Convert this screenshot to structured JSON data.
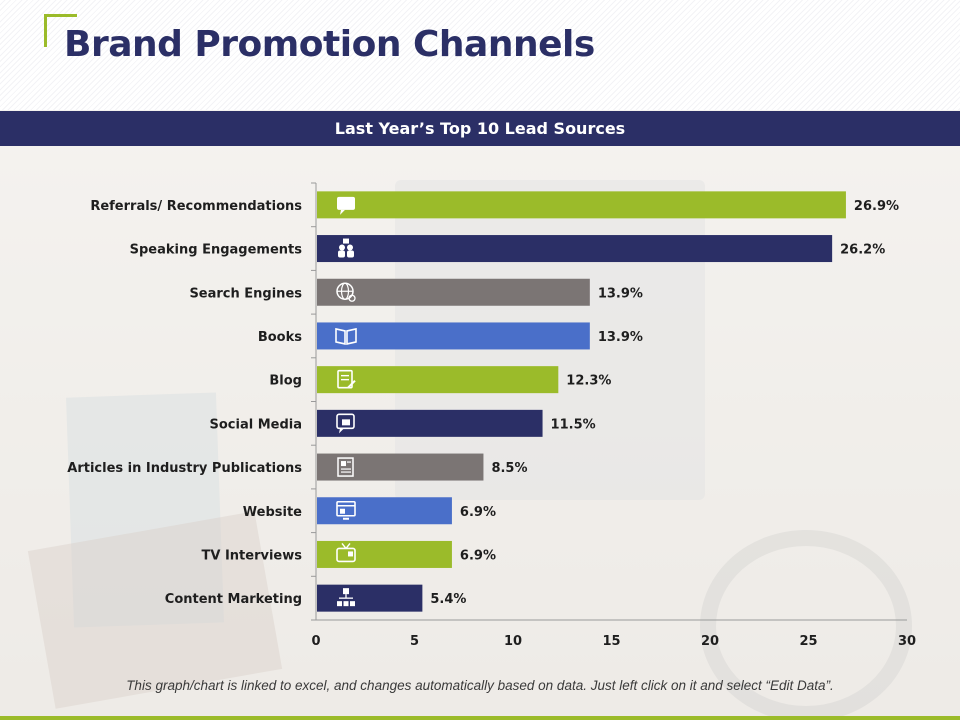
{
  "title": "Brand Promotion Channels",
  "banner": "Last Year’s Top 10 Lead Sources",
  "footer_note": "This graph/chart is linked to excel, and changes automatically based on data.  Just left click on it and select “Edit Data”.",
  "colors": {
    "navy": "#2b2f66",
    "green": "#9bbb2a",
    "gray": "#7b7574",
    "blue": "#4a6fc9",
    "accent": "#9bbb2a"
  },
  "chart_data": {
    "type": "bar",
    "orientation": "horizontal",
    "categories": [
      "Referrals/ Recommendations",
      "Speaking Engagements",
      "Search Engines",
      "Books",
      "Blog",
      "Social Media",
      "Articles in Industry Publications",
      "Website",
      "TV Interviews",
      "Content Marketing"
    ],
    "values": [
      26.9,
      26.2,
      13.9,
      13.9,
      12.3,
      11.5,
      8.5,
      6.9,
      6.9,
      5.4
    ],
    "data_labels": [
      "26.9%",
      "26.2%",
      "13.9%",
      "13.9%",
      "12.3%",
      "11.5%",
      "8.5%",
      "6.9%",
      "6.9%",
      "5.4%"
    ],
    "bar_colors": [
      "#9bbb2a",
      "#2b2f66",
      "#7b7574",
      "#4a6fc9",
      "#9bbb2a",
      "#2b2f66",
      "#7b7574",
      "#4a6fc9",
      "#9bbb2a",
      "#2b2f66"
    ],
    "icons": [
      "speech-bubble-icon",
      "audience-icon",
      "globe-search-icon",
      "open-book-icon",
      "blog-edit-icon",
      "thumbs-up-chat-icon",
      "newspaper-icon",
      "web-page-icon",
      "tv-icon",
      "hierarchy-icon"
    ],
    "xlim": [
      0,
      30
    ],
    "xticks": [
      0,
      5,
      10,
      15,
      20,
      25,
      30
    ],
    "grid": false,
    "legend": "none"
  }
}
